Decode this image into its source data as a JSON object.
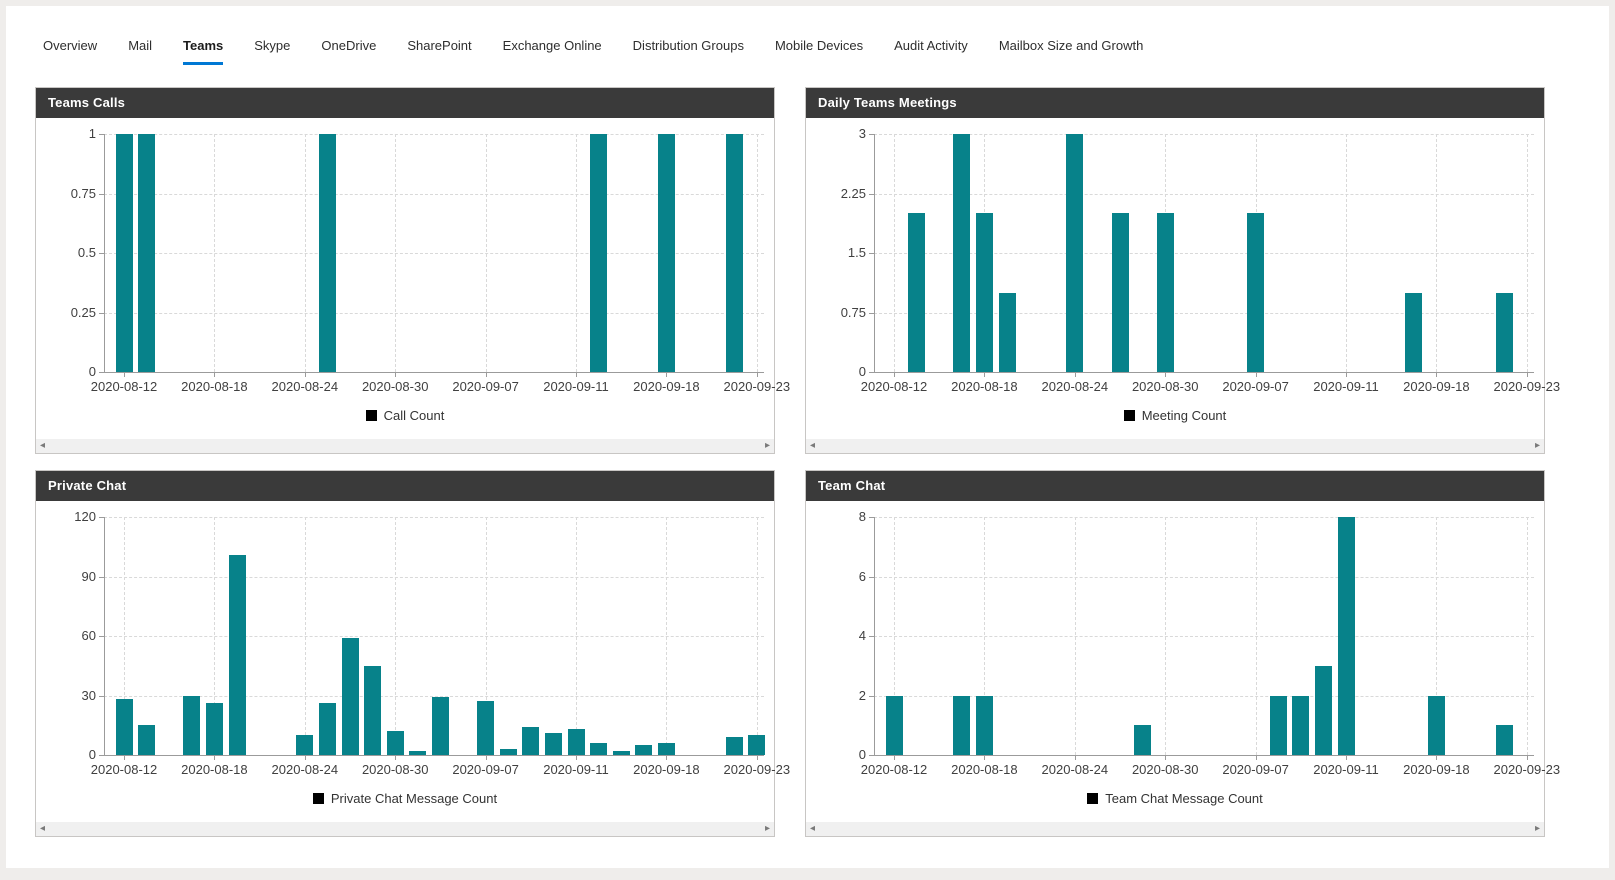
{
  "colors": {
    "bar": "#07828a",
    "tab_active_underline": "#0078d4",
    "panel_header_bg": "#3a3a3a",
    "legend_swatch": "#000000"
  },
  "icons": {
    "scroll_left": "◂",
    "scroll_right": "▸"
  },
  "tabs": {
    "items": [
      {
        "label": "Overview",
        "active": false
      },
      {
        "label": "Mail",
        "active": false
      },
      {
        "label": "Teams",
        "active": true
      },
      {
        "label": "Skype",
        "active": false
      },
      {
        "label": "OneDrive",
        "active": false
      },
      {
        "label": "SharePoint",
        "active": false
      },
      {
        "label": "Exchange Online",
        "active": false
      },
      {
        "label": "Distribution Groups",
        "active": false
      },
      {
        "label": "Mobile Devices",
        "active": false
      },
      {
        "label": "Audit Activity",
        "active": false
      },
      {
        "label": "Mailbox Size and Growth",
        "active": false
      }
    ]
  },
  "chart_data": [
    {
      "type": "bar",
      "title": "Teams Calls",
      "legend": "Call Count",
      "ylim": [
        0,
        1
      ],
      "y_tick_labels": [
        "0",
        "0.25",
        "0.5",
        "0.75",
        "1"
      ],
      "x_tick_labels": [
        "2020-08-12",
        "2020-08-18",
        "2020-08-24",
        "2020-08-30",
        "2020-09-07",
        "2020-09-11",
        "2020-09-18",
        "2020-09-23"
      ],
      "x_tick_slots": [
        0,
        4,
        8,
        12,
        16,
        20,
        24,
        28
      ],
      "slot_count": 30,
      "grid": "dashed",
      "legend_position": "bottom",
      "bars": [
        {
          "slot": 0,
          "value": 1
        },
        {
          "slot": 1,
          "value": 1
        },
        {
          "slot": 9,
          "value": 1
        },
        {
          "slot": 21,
          "value": 1
        },
        {
          "slot": 24,
          "value": 1
        },
        {
          "slot": 27,
          "value": 1
        }
      ]
    },
    {
      "type": "bar",
      "title": "Daily Teams Meetings",
      "legend": "Meeting Count",
      "ylim": [
        0,
        3
      ],
      "y_tick_labels": [
        "0",
        "0.75",
        "1.5",
        "2.25",
        "3"
      ],
      "x_tick_labels": [
        "2020-08-12",
        "2020-08-18",
        "2020-08-24",
        "2020-08-30",
        "2020-09-07",
        "2020-09-11",
        "2020-09-18",
        "2020-09-23"
      ],
      "x_tick_slots": [
        0,
        4,
        8,
        12,
        16,
        20,
        24,
        28
      ],
      "slot_count": 30,
      "grid": "dashed",
      "legend_position": "bottom",
      "bars": [
        {
          "slot": 1,
          "value": 2
        },
        {
          "slot": 3,
          "value": 3
        },
        {
          "slot": 4,
          "value": 2
        },
        {
          "slot": 5,
          "value": 1
        },
        {
          "slot": 8,
          "value": 3
        },
        {
          "slot": 10,
          "value": 2
        },
        {
          "slot": 12,
          "value": 2
        },
        {
          "slot": 16,
          "value": 2
        },
        {
          "slot": 23,
          "value": 1
        },
        {
          "slot": 27,
          "value": 1
        }
      ]
    },
    {
      "type": "bar",
      "title": "Private Chat",
      "legend": "Private Chat Message Count",
      "ylim": [
        0,
        120
      ],
      "y_tick_labels": [
        "0",
        "30",
        "60",
        "90",
        "120"
      ],
      "x_tick_labels": [
        "2020-08-12",
        "2020-08-18",
        "2020-08-24",
        "2020-08-30",
        "2020-09-07",
        "2020-09-11",
        "2020-09-18",
        "2020-09-23"
      ],
      "x_tick_slots": [
        0,
        4,
        8,
        12,
        16,
        20,
        24,
        28
      ],
      "slot_count": 30,
      "grid": "dashed",
      "legend_position": "bottom",
      "bars": [
        {
          "slot": 0,
          "value": 28
        },
        {
          "slot": 1,
          "value": 15
        },
        {
          "slot": 3,
          "value": 30
        },
        {
          "slot": 4,
          "value": 26
        },
        {
          "slot": 5,
          "value": 101
        },
        {
          "slot": 8,
          "value": 10
        },
        {
          "slot": 9,
          "value": 26
        },
        {
          "slot": 10,
          "value": 59
        },
        {
          "slot": 11,
          "value": 45
        },
        {
          "slot": 12,
          "value": 12
        },
        {
          "slot": 13,
          "value": 2
        },
        {
          "slot": 14,
          "value": 29
        },
        {
          "slot": 16,
          "value": 27
        },
        {
          "slot": 17,
          "value": 3
        },
        {
          "slot": 18,
          "value": 14
        },
        {
          "slot": 19,
          "value": 11
        },
        {
          "slot": 20,
          "value": 13
        },
        {
          "slot": 21,
          "value": 6
        },
        {
          "slot": 22,
          "value": 2
        },
        {
          "slot": 23,
          "value": 5
        },
        {
          "slot": 24,
          "value": 6
        },
        {
          "slot": 27,
          "value": 9
        },
        {
          "slot": 28,
          "value": 10
        }
      ]
    },
    {
      "type": "bar",
      "title": "Team Chat",
      "legend": "Team Chat Message Count",
      "ylim": [
        0,
        8
      ],
      "y_tick_labels": [
        "0",
        "2",
        "4",
        "6",
        "8"
      ],
      "x_tick_labels": [
        "2020-08-12",
        "2020-08-18",
        "2020-08-24",
        "2020-08-30",
        "2020-09-07",
        "2020-09-11",
        "2020-09-18",
        "2020-09-23"
      ],
      "x_tick_slots": [
        0,
        4,
        8,
        12,
        16,
        20,
        24,
        28
      ],
      "slot_count": 30,
      "grid": "dashed",
      "legend_position": "bottom",
      "bars": [
        {
          "slot": 0,
          "value": 2
        },
        {
          "slot": 3,
          "value": 2
        },
        {
          "slot": 4,
          "value": 2
        },
        {
          "slot": 11,
          "value": 1
        },
        {
          "slot": 17,
          "value": 2
        },
        {
          "slot": 18,
          "value": 2
        },
        {
          "slot": 19,
          "value": 3
        },
        {
          "slot": 20,
          "value": 8
        },
        {
          "slot": 24,
          "value": 2
        },
        {
          "slot": 27,
          "value": 1
        }
      ]
    }
  ]
}
